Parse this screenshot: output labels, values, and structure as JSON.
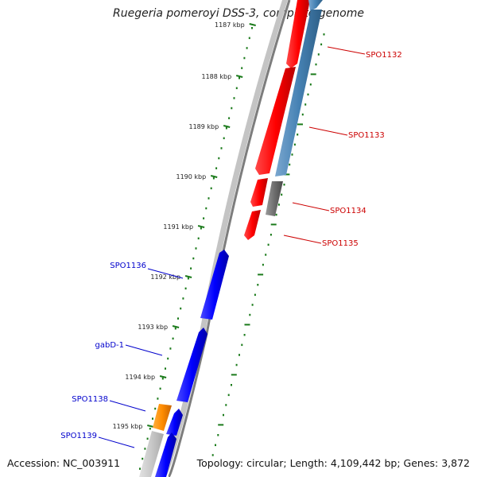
{
  "title": "Ruegeria pomeroyi DSS-3, complete genome",
  "footer": {
    "accession": "Accession: NC_003911",
    "summary": "Topology: circular; Length: 4,109,442 bp; Genes: 3,872"
  },
  "ruler": {
    "labels": [
      "1187 kbp",
      "1188 kbp",
      "1189 kbp",
      "1190 kbp",
      "1191 kbp",
      "1192 kbp",
      "1193 kbp",
      "1194 kbp",
      "1195 kbp"
    ],
    "color": "#1a7a1a"
  },
  "colors": {
    "forward_strand": "#ff0000",
    "reverse_strand": "#0000ff",
    "forward_label": "#cc0000",
    "reverse_label": "#0000cc",
    "cds_track": "#4682b4",
    "other_feature": "#808080",
    "rna_feature": "#ff8c00",
    "backbone": "#808080"
  },
  "genes_right": [
    "SPO1132",
    "SPO1133",
    "SPO1134",
    "SPO1135"
  ],
  "genes_left": [
    "SPO1136",
    "gabD-1",
    "SPO1138",
    "SPO1139"
  ]
}
